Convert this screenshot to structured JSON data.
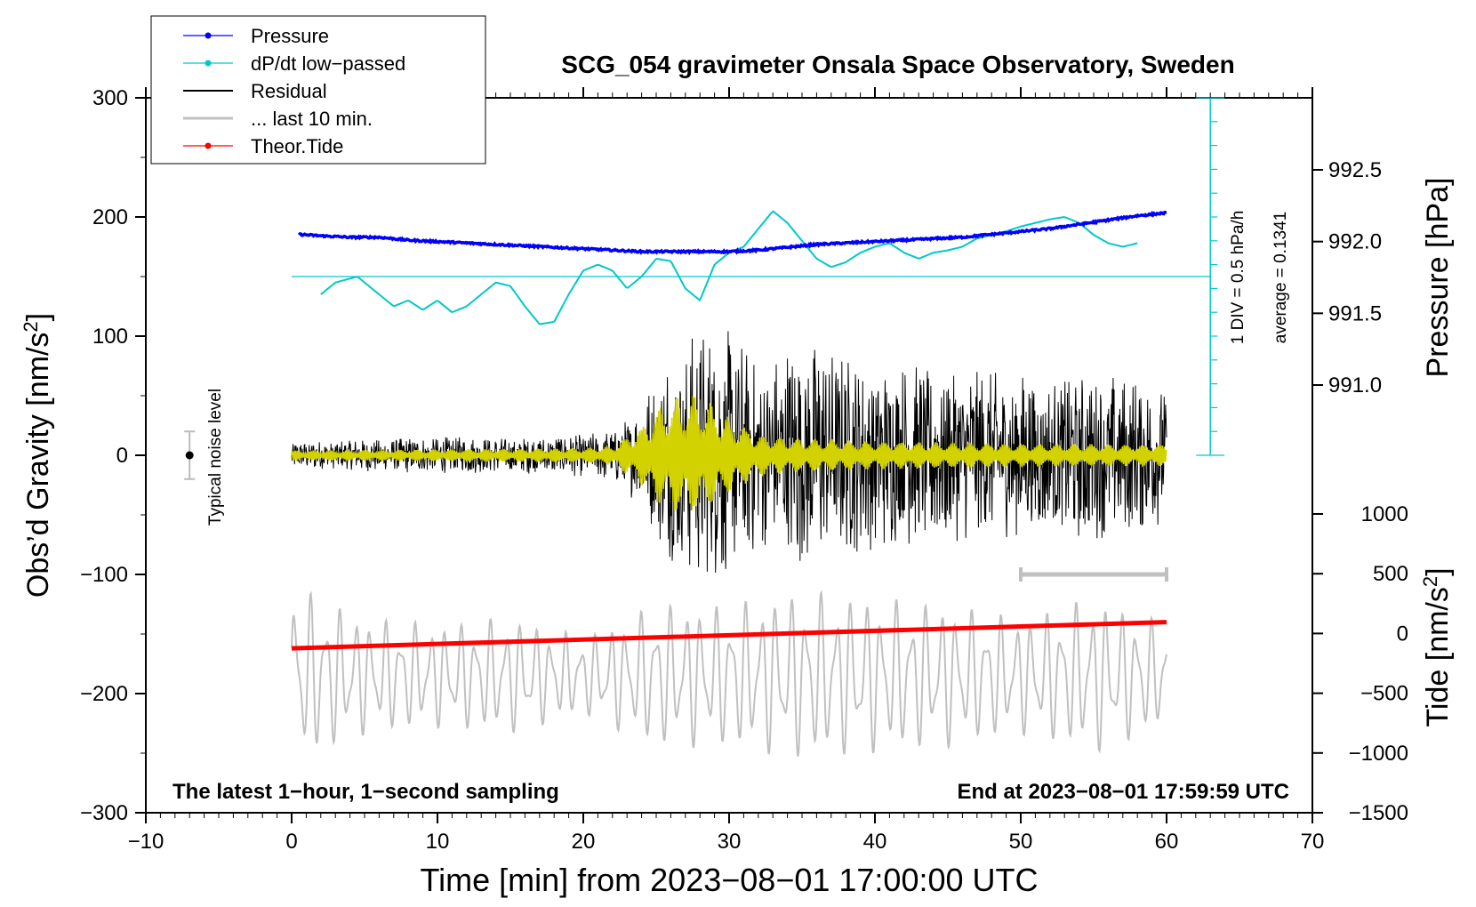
{
  "chart_data": {
    "type": "line",
    "title": "SCG_054 gravimeter Onsala Space Observatory, Sweden",
    "xlabel": "Time [min] from 2023−08−01 17:00:00 UTC",
    "ylabel_left": "Obs’d Gravity [nm/s²]",
    "ylabel_left_main": "Obs’d Gravity [nm/s",
    "ylabel_left_sup": "2",
    "ylabel_left_end": "]",
    "ylabel_right_pressure": "Pressure [hPa]",
    "ylabel_right_tide": "Tide [nm/s²]",
    "ylabel_right_tide_main": "Tide [nm/s",
    "ylabel_right_tide_sup": "2",
    "ylabel_right_tide_end": "]",
    "xlim": [
      -10,
      70
    ],
    "ylim": [
      -300,
      300
    ],
    "x_ticks": [
      "−10",
      "0",
      "10",
      "20",
      "30",
      "40",
      "50",
      "60",
      "70"
    ],
    "x_tick_values": [
      -10,
      0,
      10,
      20,
      30,
      40,
      50,
      60,
      70
    ],
    "y_ticks": [
      "300",
      "200",
      "100",
      "0",
      "−100",
      "−200",
      "−300"
    ],
    "y_tick_values": [
      300,
      200,
      100,
      0,
      -100,
      -200,
      -300
    ],
    "pressure_ticks": [
      "992.5",
      "992.0",
      "991.5",
      "991.0"
    ],
    "pressure_tick_values": [
      992.5,
      992.0,
      991.5,
      991.0
    ],
    "pressure_range": [
      991.0,
      992.5
    ],
    "tide_ticks": [
      "1000",
      "500",
      "0",
      "−500",
      "−1000",
      "−1500"
    ],
    "tide_tick_values": [
      1000,
      500,
      0,
      -500,
      -1000,
      -1500
    ],
    "tide_range": [
      -1500,
      1000
    ],
    "legend": [
      {
        "label": "Pressure",
        "color": "#0000ff",
        "marker": true
      },
      {
        "label": "dP/dt low−passed",
        "color": "#00c8c8",
        "marker": true
      },
      {
        "label": "Residual",
        "color": "#000000",
        "marker": false
      },
      {
        "label": "... last 10 min.",
        "color": "#c0c0c0",
        "marker": false
      },
      {
        "label": "Theor.Tide",
        "color": "#ff0000",
        "marker": true
      }
    ],
    "legend_position": "top-left",
    "annotations": {
      "bottom_left": "The latest 1−hour, 1−second sampling",
      "bottom_right": "End at 2023−08−01 17:59:59 UTC",
      "noise": "Typical noise level",
      "div": "1 DIV = 0.5 hPa/h",
      "average": "average = 0.1341"
    },
    "noise_bar": {
      "x": -7,
      "y": 0,
      "halfwidth": 20
    },
    "last10_bar": {
      "x_start": 50,
      "x_end": 60,
      "y": -100
    },
    "dpdt_scale": {
      "x": 63,
      "y_bottom": 0,
      "y_top": 300,
      "divisions": 15,
      "zero_line_y": 150
    },
    "series": [
      {
        "name": "Pressure",
        "color": "#0000ff",
        "unit": "hPa",
        "x": [
          0.5,
          2,
          4,
          6,
          8,
          10,
          12,
          14,
          16,
          18,
          20,
          22,
          24,
          26,
          28,
          30,
          32,
          34,
          36,
          38,
          40,
          42,
          44,
          46,
          48,
          50,
          52,
          54,
          56,
          58,
          60
        ],
        "values": [
          992.05,
          992.04,
          992.03,
          992.03,
          992.01,
          992.0,
          991.99,
          991.98,
          991.97,
          991.96,
          991.95,
          991.94,
          991.93,
          991.93,
          991.93,
          991.93,
          991.94,
          991.96,
          991.98,
          991.99,
          992.0,
          992.01,
          992.02,
          992.03,
          992.05,
          992.07,
          992.09,
          992.12,
          992.15,
          992.18,
          992.2
        ]
      },
      {
        "name": "dP/dt low−passed",
        "color": "#00c8c8",
        "unit": "nm/s² axis",
        "x": [
          2,
          3,
          4.5,
          6,
          7,
          8,
          9,
          10,
          11,
          12,
          13,
          14,
          15,
          16,
          17,
          18,
          19,
          20,
          21,
          22,
          23,
          24,
          25,
          26,
          27,
          28,
          29,
          30,
          31,
          32,
          33,
          34,
          35,
          36,
          37,
          38,
          39,
          40,
          41,
          42,
          43,
          44,
          45,
          46,
          47,
          48,
          49,
          50,
          51,
          52,
          53,
          54,
          55,
          56,
          57,
          58
        ],
        "values": [
          135,
          145,
          150,
          135,
          125,
          130,
          122,
          130,
          120,
          125,
          135,
          145,
          142,
          125,
          110,
          112,
          135,
          155,
          160,
          155,
          140,
          150,
          165,
          163,
          140,
          130,
          160,
          170,
          175,
          190,
          205,
          195,
          180,
          165,
          158,
          162,
          170,
          175,
          178,
          170,
          165,
          170,
          172,
          175,
          182,
          185,
          188,
          192,
          195,
          198,
          200,
          195,
          185,
          178,
          175,
          178
        ]
      },
      {
        "name": "Residual",
        "color": "#000000",
        "unit": "nm/s²",
        "x_start": 0,
        "x_end": 60,
        "envelope_x": [
          0,
          5,
          10,
          15,
          20,
          22,
          24,
          25,
          26,
          27,
          28,
          29,
          30,
          31,
          32,
          33,
          34,
          35,
          36,
          37,
          38,
          40,
          42,
          44,
          46,
          48,
          50,
          52,
          54,
          56,
          58,
          60
        ],
        "envelope": [
          12,
          14,
          16,
          15,
          18,
          22,
          45,
          70,
          90,
          100,
          105,
          110,
          105,
          95,
          80,
          85,
          95,
          100,
          95,
          90,
          85,
          80,
          78,
          75,
          72,
          70,
          72,
          68,
          72,
          70,
          65,
          60
        ]
      },
      {
        "name": "Filtered",
        "color": "#d2d200",
        "unit": "nm/s²",
        "envelope_x": [
          0,
          10,
          20,
          22,
          24,
          25,
          26,
          27,
          28,
          29,
          30,
          32,
          34,
          36,
          40,
          50,
          60
        ],
        "envelope": [
          4,
          5,
          6,
          8,
          25,
          40,
          48,
          52,
          50,
          42,
          32,
          18,
          15,
          14,
          12,
          10,
          9
        ]
      },
      {
        "name": "... last 10 min.",
        "color": "#c0c0c0",
        "unit": "nm/s²",
        "x_start": 0,
        "x_end": 60,
        "center": -185,
        "envelope_x": [
          0,
          5,
          10,
          15,
          20,
          25,
          30,
          35,
          40,
          45,
          50,
          55,
          60
        ],
        "envelope": [
          70,
          45,
          40,
          45,
          30,
          55,
          55,
          65,
          60,
          55,
          45,
          60,
          40
        ]
      },
      {
        "name": "Theor.Tide",
        "color": "#ff0000",
        "unit": "nm/s²",
        "x": [
          0,
          60
        ],
        "values": [
          -162,
          -140
        ]
      }
    ]
  }
}
